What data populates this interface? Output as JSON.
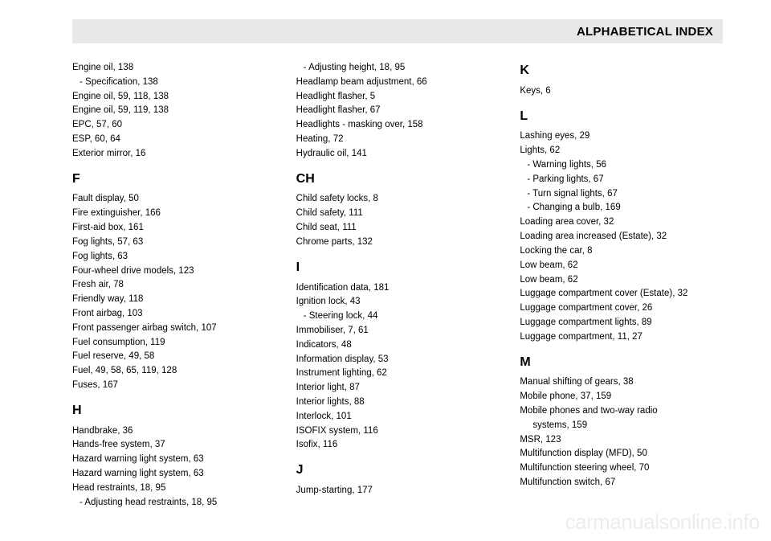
{
  "header": {
    "title": "ALPHABETICAL INDEX"
  },
  "watermark": "carmanualsonline.info",
  "col1": {
    "pre": [
      {
        "text": "Engine oil, 138",
        "sub": false
      },
      {
        "text": "Specification, 138",
        "sub": true
      },
      {
        "text": "Engine oil, 59, 118, 138",
        "sub": false
      },
      {
        "text": "Engine oil, 59, 119, 138",
        "sub": false
      },
      {
        "text": "EPC, 57, 60",
        "sub": false
      },
      {
        "text": "ESP, 60, 64",
        "sub": false
      },
      {
        "text": "Exterior mirror, 16",
        "sub": false
      }
    ],
    "letter_f": "F",
    "f_entries": [
      {
        "text": "Fault display, 50",
        "sub": false
      },
      {
        "text": "Fire extinguisher, 166",
        "sub": false
      },
      {
        "text": "First-aid box, 161",
        "sub": false
      },
      {
        "text": "Fog lights, 57, 63",
        "sub": false
      },
      {
        "text": "Fog lights, 63",
        "sub": false
      },
      {
        "text": "Four-wheel drive models, 123",
        "sub": false
      },
      {
        "text": "Fresh air, 78",
        "sub": false
      },
      {
        "text": "Friendly way, 118",
        "sub": false
      },
      {
        "text": "Front airbag, 103",
        "sub": false
      },
      {
        "text": "Front passenger airbag switch, 107",
        "sub": false
      },
      {
        "text": "Fuel consumption, 119",
        "sub": false
      },
      {
        "text": "Fuel reserve, 49, 58",
        "sub": false
      },
      {
        "text": "Fuel, 49, 58, 65, 119, 128",
        "sub": false
      },
      {
        "text": "Fuses, 167",
        "sub": false
      }
    ],
    "letter_h": "H",
    "h_entries": [
      {
        "text": "Handbrake, 36",
        "sub": false
      },
      {
        "text": "Hands-free system, 37",
        "sub": false
      },
      {
        "text": "Hazard warning light system, 63",
        "sub": false
      },
      {
        "text": "Hazard warning light system, 63",
        "sub": false
      },
      {
        "text": "Head restraints, 18, 95",
        "sub": false
      },
      {
        "text": "Adjusting head restraints, 18, 95",
        "sub": true
      }
    ]
  },
  "col2": {
    "pre": [
      {
        "text": "Adjusting height, 18, 95",
        "sub": true
      },
      {
        "text": "Headlamp beam adjustment, 66",
        "sub": false
      },
      {
        "text": "Headlight flasher, 5",
        "sub": false
      },
      {
        "text": "Headlight flasher, 67",
        "sub": false
      },
      {
        "text": "Headlights - masking over, 158",
        "sub": false
      },
      {
        "text": "Heating, 72",
        "sub": false
      },
      {
        "text": "Hydraulic oil, 141",
        "sub": false
      }
    ],
    "letter_ch": "CH",
    "ch_entries": [
      {
        "text": "Child safety locks, 8",
        "sub": false
      },
      {
        "text": "Child safety, 111",
        "sub": false
      },
      {
        "text": "Child seat, 111",
        "sub": false
      },
      {
        "text": "Chrome parts, 132",
        "sub": false
      }
    ],
    "letter_i": "I",
    "i_entries": [
      {
        "text": "Identification data, 181",
        "sub": false
      },
      {
        "text": "Ignition lock, 43",
        "sub": false
      },
      {
        "text": "Steering lock, 44",
        "sub": true
      },
      {
        "text": "Immobiliser, 7, 61",
        "sub": false
      },
      {
        "text": "Indicators, 48",
        "sub": false
      },
      {
        "text": "Information display, 53",
        "sub": false
      },
      {
        "text": "Instrument lighting, 62",
        "sub": false
      },
      {
        "text": "Interior light, 87",
        "sub": false
      },
      {
        "text": "Interior lights, 88",
        "sub": false
      },
      {
        "text": "Interlock, 101",
        "sub": false
      },
      {
        "text": "ISOFIX system, 116",
        "sub": false
      },
      {
        "text": "Isofix, 116",
        "sub": false
      }
    ],
    "letter_j": "J",
    "j_entries": [
      {
        "text": "Jump-starting, 177",
        "sub": false
      }
    ]
  },
  "col3": {
    "letter_k": "K",
    "k_entries": [
      {
        "text": "Keys, 6",
        "sub": false
      }
    ],
    "letter_l": "L",
    "l_entries": [
      {
        "text": "Lashing eyes, 29",
        "sub": false
      },
      {
        "text": "Lights, 62",
        "sub": false
      },
      {
        "text": "Warning lights, 56",
        "sub": true
      },
      {
        "text": "Parking lights, 67",
        "sub": true
      },
      {
        "text": "Turn signal lights, 67",
        "sub": true
      },
      {
        "text": "Changing a bulb, 169",
        "sub": true
      },
      {
        "text": "Loading area cover, 32",
        "sub": false
      },
      {
        "text": "Loading area increased (Estate), 32",
        "sub": false
      },
      {
        "text": "Locking the car, 8",
        "sub": false
      },
      {
        "text": "Low beam, 62",
        "sub": false
      },
      {
        "text": "Low beam, 62",
        "sub": false
      },
      {
        "text": "Luggage compartment cover (Estate), 32",
        "sub": false
      },
      {
        "text": "Luggage compartment cover, 26",
        "sub": false
      },
      {
        "text": "Luggage compartment lights, 89",
        "sub": false
      },
      {
        "text": "Luggage compartment, 11, 27",
        "sub": false
      }
    ],
    "letter_m": "M",
    "m_entries": [
      {
        "text": "Manual shifting of gears, 38",
        "sub": false
      },
      {
        "text": "Mobile phone, 37, 159",
        "sub": false
      },
      {
        "text": "Mobile phones and two-way radio",
        "sub": false
      },
      {
        "text": "systems, 159",
        "sub": false,
        "wrap": true
      },
      {
        "text": "MSR, 123",
        "sub": false
      },
      {
        "text": "Multifunction display (MFD), 50",
        "sub": false
      },
      {
        "text": "Multifunction steering wheel, 70",
        "sub": false
      },
      {
        "text": "Multifunction switch, 67",
        "sub": false
      }
    ]
  }
}
